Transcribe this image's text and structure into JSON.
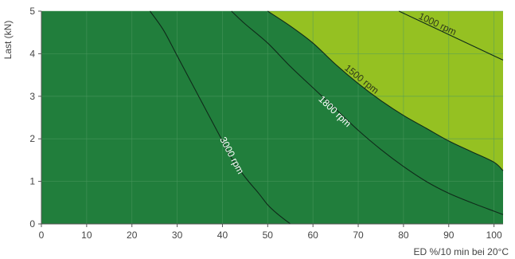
{
  "chart_data": {
    "type": "area",
    "xlabel": "ED %/10 min bei 20°C",
    "ylabel": "Last (kN)",
    "xlim": [
      0,
      102
    ],
    "ylim": [
      0,
      5
    ],
    "xticks": [
      0,
      10,
      20,
      30,
      40,
      50,
      60,
      70,
      80,
      90,
      100
    ],
    "yticks": [
      0,
      1,
      2,
      3,
      4,
      5
    ],
    "grid": true,
    "colors": {
      "dark_region": "#217e3c",
      "light_region": "#95c122",
      "curve": "#0f2a1a",
      "grid": "#4f9960",
      "text": "#444444"
    },
    "series": [
      {
        "name": "1000 rpm",
        "x": [
          79,
          85,
          90,
          95,
          100,
          102
        ],
        "y": [
          5.0,
          4.7,
          4.45,
          4.2,
          3.95,
          3.85
        ]
      },
      {
        "name": "1500 rpm",
        "x": [
          50,
          55,
          60,
          65,
          70,
          75,
          80,
          85,
          90,
          95,
          100,
          102
        ],
        "y": [
          5.0,
          4.65,
          4.25,
          3.75,
          3.3,
          2.9,
          2.55,
          2.25,
          1.95,
          1.7,
          1.45,
          1.25
        ]
      },
      {
        "name": "1800 rpm",
        "x": [
          42,
          45,
          50,
          55,
          60,
          65,
          70,
          75,
          80,
          85,
          90,
          95,
          100,
          102
        ],
        "y": [
          5.0,
          4.7,
          4.25,
          3.7,
          3.2,
          2.7,
          2.2,
          1.75,
          1.35,
          1.0,
          0.72,
          0.5,
          0.3,
          0.22
        ]
      },
      {
        "name": "3000 rpm",
        "x": [
          24,
          27,
          30,
          33,
          35,
          38,
          40,
          42,
          45,
          48,
          50,
          52,
          55
        ],
        "y": [
          5.0,
          4.55,
          3.95,
          3.35,
          2.95,
          2.35,
          1.95,
          1.55,
          1.1,
          0.72,
          0.45,
          0.25,
          0.0
        ]
      }
    ]
  }
}
